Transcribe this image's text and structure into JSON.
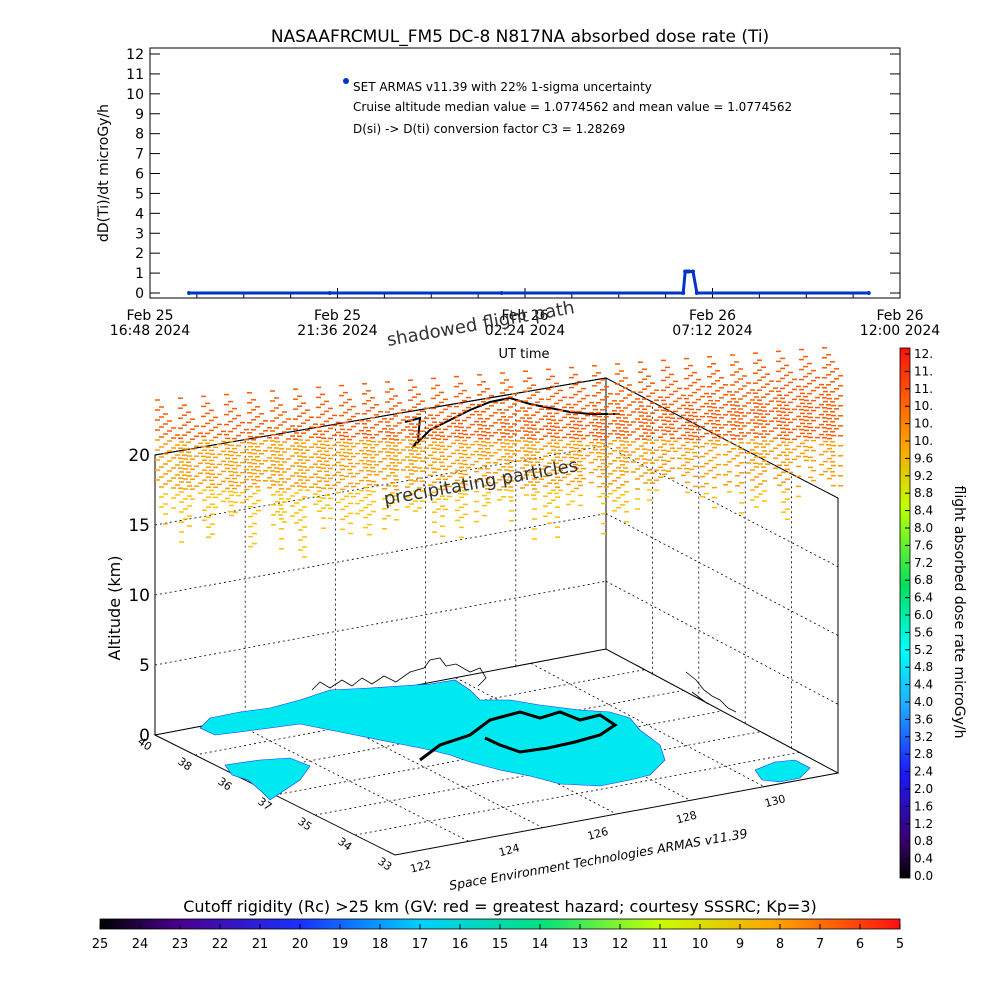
{
  "title": "NASAAFRCMUL_FM5 DC-8   N817NA absorbed dose rate (Ti)",
  "chart_data": [
    {
      "type": "scatter",
      "title": "NASAAFRCMUL_FM5 DC-8   N817NA absorbed dose rate (Ti)",
      "ylabel": "dD(Ti)/dt microGy/h",
      "xlabel": "UT time",
      "ylim": [
        0,
        12
      ],
      "y_ticks": [
        "0",
        "1",
        "2",
        "3",
        "4",
        "5",
        "6",
        "7",
        "8",
        "9",
        "10",
        "11",
        "12"
      ],
      "x_ticks": [
        {
          "line1": "Feb 25",
          "line2": "16:48 2024"
        },
        {
          "line1": "Feb 25",
          "line2": "21:36 2024"
        },
        {
          "line1": "Feb 26",
          "line2": "02:24 2024"
        },
        {
          "line1": "Feb 26",
          "line2": "07:12 2024"
        },
        {
          "line1": "Feb 26",
          "line2": "12:00 2024"
        }
      ],
      "xlim_hours": [
        0,
        19.2
      ],
      "series": [
        {
          "name": "SET ARMAS v11.39 with 22% 1-sigma uncertainty",
          "color": "#0033cc",
          "x_hours": [
            1,
            4.6,
            9.0,
            13.65,
            13.7,
            13.75,
            13.8,
            13.9,
            14.0,
            18.4
          ],
          "values": [
            0,
            0,
            0,
            0,
            1.08,
            1.08,
            1.08,
            1.08,
            0,
            0
          ]
        }
      ],
      "annotations": [
        "SET ARMAS v11.39 with 22% 1-sigma uncertainty",
        "Cruise altitude median value = 1.0774562 and mean value = 1.0774562",
        "D(si) -> D(ti) conversion factor C3 = 1.28269"
      ],
      "grid": false,
      "legend": "top-left"
    },
    {
      "type": "heatmap",
      "title": "",
      "zlabel": "Altitude (km)",
      "z_ticks": [
        "0",
        "5",
        "10",
        "15",
        "20"
      ],
      "lat_ticks": [
        "40",
        "38",
        "36",
        "37",
        "35",
        "34",
        "33"
      ],
      "lon_ticks": [
        "122",
        "124",
        "126",
        "128",
        "130"
      ],
      "labels": [
        "shadowed flight path",
        "precipitating particles"
      ],
      "credit": "Space Environment Technologies ARMAS v11.39",
      "dose_colorbar": {
        "label": "flight absorbed dose rate microGy/h",
        "ticks": [
          "12.",
          "11.",
          "11.",
          "10.",
          "10.",
          "10.",
          "9.6",
          "9.2",
          "8.8",
          "8.4",
          "8.0",
          "7.6",
          "7.2",
          "6.8",
          "6.4",
          "6.0",
          "5.6",
          "5.2",
          "4.8",
          "4.4",
          "4.0",
          "3.6",
          "3.2",
          "2.8",
          "2.4",
          "2.0",
          "1.6",
          "1.2",
          "0.8",
          "0.4",
          "0.0"
        ]
      },
      "cutoff_colorbar": {
        "label": "Cutoff rigidity (Rc) >25 km (GV: red = greatest hazard; courtesy SSSRC; Kp=3)",
        "ticks": [
          "25",
          "24",
          "23",
          "22",
          "21",
          "20",
          "19",
          "18",
          "17",
          "16",
          "15",
          "14",
          "13",
          "12",
          "11",
          "10",
          "9",
          "8",
          "7",
          "6",
          "5"
        ]
      }
    }
  ]
}
